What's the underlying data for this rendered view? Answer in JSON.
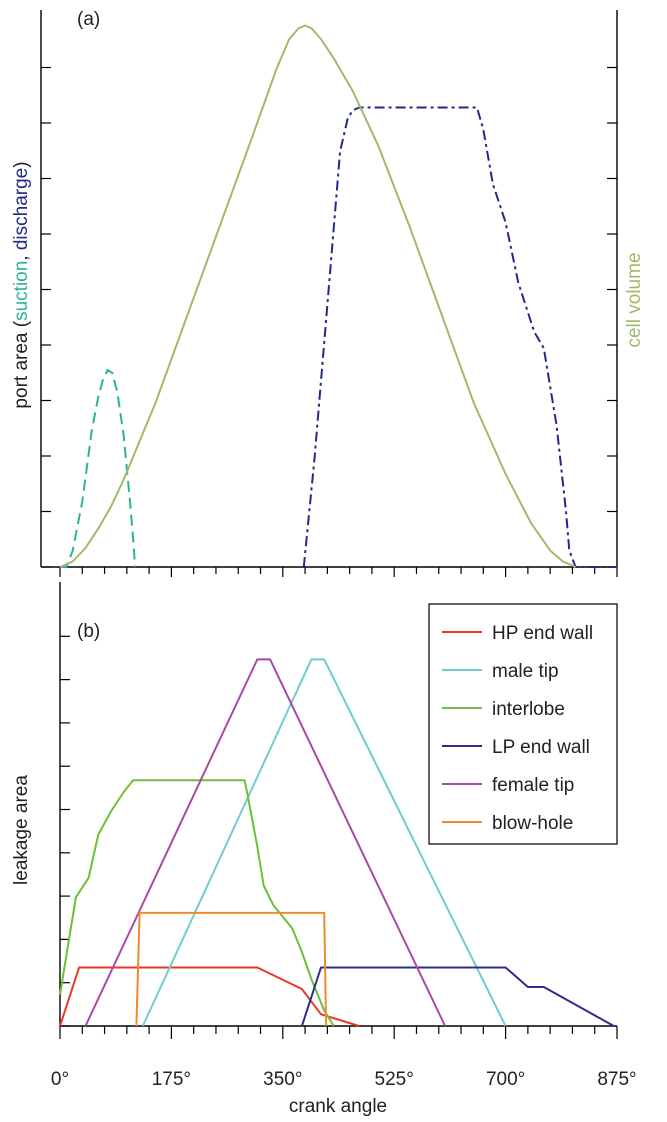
{
  "chart_data": [
    {
      "type": "line",
      "panel_label": "(a)",
      "ylabel_left": {
        "prefix": "port area (",
        "suction": "suction",
        "sep": ", ",
        "discharge": "discharge",
        "suffix": ")"
      },
      "ylabel_right": "cell volume",
      "xlim": [
        0,
        875
      ],
      "ylim": [
        0,
        1
      ],
      "series": [
        {
          "name": "suction",
          "color": "#2bb39a",
          "dash": "dashed",
          "axis": "left",
          "points": [
            [
              0,
              0
            ],
            [
              10,
              0
            ],
            [
              20,
              0.03
            ],
            [
              35,
              0.12
            ],
            [
              50,
              0.25
            ],
            [
              60,
              0.31
            ],
            [
              68,
              0.345
            ],
            [
              75,
              0.36
            ],
            [
              82,
              0.355
            ],
            [
              90,
              0.32
            ],
            [
              100,
              0.24
            ],
            [
              110,
              0.12
            ],
            [
              115,
              0.05
            ],
            [
              118,
              0
            ]
          ]
        },
        {
          "name": "discharge",
          "color": "#1f2a8a",
          "dash": "dashdot",
          "axis": "left",
          "points": [
            [
              383,
              0
            ],
            [
              400,
              0.2
            ],
            [
              420,
              0.48
            ],
            [
              440,
              0.76
            ],
            [
              452,
              0.82
            ],
            [
              460,
              0.835
            ],
            [
              470,
              0.84
            ],
            [
              655,
              0.84
            ],
            [
              665,
              0.8
            ],
            [
              680,
              0.7
            ],
            [
              700,
              0.63
            ],
            [
              720,
              0.52
            ],
            [
              745,
              0.43
            ],
            [
              750,
              0.42
            ],
            [
              760,
              0.4
            ],
            [
              780,
              0.26
            ],
            [
              795,
              0.1
            ],
            [
              800,
              0.03
            ],
            [
              810,
              0
            ],
            [
              875,
              0
            ]
          ]
        },
        {
          "name": "cell volume",
          "color": "#a3b86c",
          "dash": "solid",
          "axis": "right",
          "points": [
            [
              0,
              0
            ],
            [
              20,
              0.01
            ],
            [
              40,
              0.035
            ],
            [
              60,
              0.07
            ],
            [
              80,
              0.11
            ],
            [
              100,
              0.16
            ],
            [
              150,
              0.3
            ],
            [
              200,
              0.46
            ],
            [
              250,
              0.62
            ],
            [
              300,
              0.78
            ],
            [
              340,
              0.91
            ],
            [
              360,
              0.965
            ],
            [
              375,
              0.985
            ],
            [
              385,
              0.99
            ],
            [
              395,
              0.985
            ],
            [
              410,
              0.965
            ],
            [
              430,
              0.93
            ],
            [
              460,
              0.87
            ],
            [
              500,
              0.77
            ],
            [
              550,
              0.62
            ],
            [
              600,
              0.46
            ],
            [
              650,
              0.3
            ],
            [
              700,
              0.17
            ],
            [
              740,
              0.08
            ],
            [
              770,
              0.03
            ],
            [
              790,
              0.01
            ],
            [
              810,
              0
            ]
          ]
        }
      ]
    },
    {
      "type": "line",
      "panel_label": "(b)",
      "ylabel": "leakage area",
      "xlabel": "crank angle",
      "xlim": [
        0,
        875
      ],
      "x_ticks": [
        0,
        175,
        350,
        525,
        700,
        875
      ],
      "x_tick_labels": [
        "0°",
        "175°",
        "350°",
        "525°",
        "700°",
        "875°"
      ],
      "ylim": [
        0,
        1
      ],
      "legend_position": "top-right",
      "series": [
        {
          "name": "HP end wall",
          "color": "#e8372a",
          "points": [
            [
              0,
              0
            ],
            [
              30,
              0.15
            ],
            [
              310,
              0.15
            ],
            [
              380,
              0.095
            ],
            [
              410,
              0.03
            ],
            [
              470,
              0
            ]
          ]
        },
        {
          "name": "male tip",
          "color": "#6fcdcd",
          "points": [
            [
              130,
              0
            ],
            [
              395,
              0.94
            ],
            [
              415,
              0.94
            ],
            [
              700,
              0
            ]
          ]
        },
        {
          "name": "interlobe",
          "color": "#6cbf3a",
          "points": [
            [
              0,
              0.08
            ],
            [
              12,
              0.2
            ],
            [
              25,
              0.33
            ],
            [
              45,
              0.38
            ],
            [
              60,
              0.49
            ],
            [
              80,
              0.55
            ],
            [
              100,
              0.6
            ],
            [
              115,
              0.63
            ],
            [
              290,
              0.63
            ],
            [
              295,
              0.59
            ],
            [
              310,
              0.46
            ],
            [
              320,
              0.36
            ],
            [
              335,
              0.31
            ],
            [
              350,
              0.28
            ],
            [
              365,
              0.25
            ],
            [
              380,
              0.19
            ],
            [
              395,
              0.12
            ],
            [
              405,
              0.08
            ],
            [
              415,
              0.04
            ],
            [
              430,
              0
            ]
          ]
        },
        {
          "name": "LP end wall",
          "color": "#2b2e8c",
          "points": [
            [
              380,
              0
            ],
            [
              410,
              0.15
            ],
            [
              700,
              0.15
            ],
            [
              735,
              0.1
            ],
            [
              760,
              0.1
            ],
            [
              870,
              0
            ]
          ]
        },
        {
          "name": "female tip",
          "color": "#a84aa5",
          "points": [
            [
              40,
              0
            ],
            [
              310,
              0.94
            ],
            [
              330,
              0.94
            ],
            [
              605,
              0
            ]
          ]
        },
        {
          "name": "blow-hole",
          "color": "#f08a2e",
          "points": [
            [
              120,
              0
            ],
            [
              125,
              0.29
            ],
            [
              415,
              0.29
            ],
            [
              418,
              0
            ]
          ]
        }
      ]
    }
  ]
}
